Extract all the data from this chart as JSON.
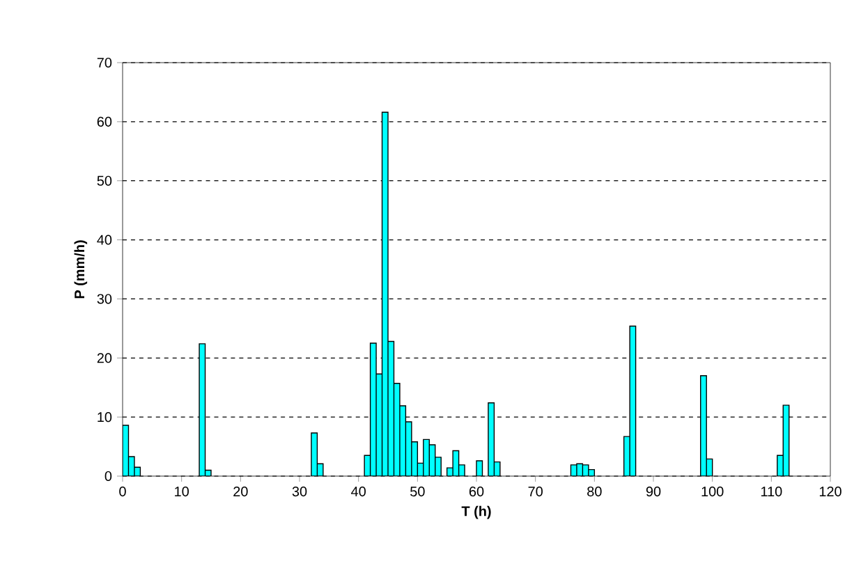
{
  "chart_data": {
    "type": "bar",
    "xlabel": "T  (h)",
    "ylabel": "P (mm/h)",
    "x": [
      0.5,
      1.5,
      2.5,
      13.5,
      14.5,
      32.5,
      33.5,
      41.5,
      42.5,
      43.5,
      44.5,
      45.5,
      46.5,
      47.5,
      48.5,
      49.5,
      50.5,
      51.5,
      52.5,
      53.5,
      55.5,
      56.5,
      57.5,
      60.5,
      62.5,
      63.5,
      76.5,
      77.5,
      78.5,
      79.5,
      85.5,
      86.5,
      98.5,
      99.5,
      111.5,
      112.5
    ],
    "values": [
      8.6,
      3.3,
      1.5,
      22.4,
      1.0,
      7.3,
      2.1,
      3.5,
      22.5,
      17.3,
      61.6,
      22.8,
      15.7,
      11.9,
      9.2,
      5.8,
      2.2,
      6.2,
      5.3,
      3.2,
      1.4,
      4.3,
      1.9,
      2.6,
      12.4,
      2.4,
      1.9,
      2.1,
      1.9,
      1.1,
      6.7,
      25.4,
      17.0,
      2.9,
      3.5,
      12.0
    ],
    "color": "#00ffff",
    "xlim": [
      0,
      120
    ],
    "ylim": [
      0,
      70
    ],
    "xticks": [
      0,
      10,
      20,
      30,
      40,
      50,
      60,
      70,
      80,
      90,
      100,
      110,
      120
    ],
    "yticks": [
      0,
      10,
      20,
      30,
      40,
      50,
      60,
      70
    ],
    "grid": "y"
  }
}
